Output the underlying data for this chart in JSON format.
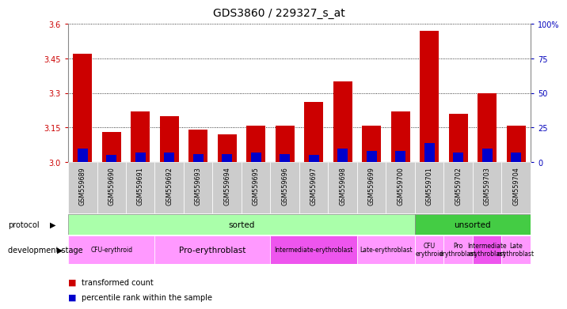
{
  "title": "GDS3860 / 229327_s_at",
  "samples": [
    "GSM559689",
    "GSM559690",
    "GSM559691",
    "GSM559692",
    "GSM559693",
    "GSM559694",
    "GSM559695",
    "GSM559696",
    "GSM559697",
    "GSM559698",
    "GSM559699",
    "GSM559700",
    "GSM559701",
    "GSM559702",
    "GSM559703",
    "GSM559704"
  ],
  "red_values": [
    3.47,
    3.13,
    3.22,
    3.2,
    3.14,
    3.12,
    3.16,
    3.16,
    3.26,
    3.35,
    3.16,
    3.22,
    3.57,
    3.21,
    3.3,
    3.16
  ],
  "blue_pct": [
    10,
    5,
    7,
    7,
    6,
    6,
    7,
    6,
    5,
    10,
    8,
    8,
    14,
    7,
    10,
    7
  ],
  "ymin": 3.0,
  "ymax": 3.6,
  "y_left_ticks": [
    3.0,
    3.15,
    3.3,
    3.45,
    3.6
  ],
  "y_right_ticks": [
    0,
    25,
    50,
    75,
    100
  ],
  "y_right_labels": [
    "0",
    "25",
    "50",
    "75",
    "100%"
  ],
  "bar_width": 0.65,
  "red_color": "#cc0000",
  "blue_color": "#0000cc",
  "bg_color": "#ffffff",
  "plot_bg": "#ffffff",
  "protocol_sorted_label": "sorted",
  "protocol_unsorted_label": "unsorted",
  "protocol_sorted_color": "#aaffaa",
  "protocol_unsorted_color": "#44cc44",
  "dev_stage_groups": [
    {
      "label": "CFU-erythroid",
      "start": 0,
      "end": 3,
      "color": "#ff99ff"
    },
    {
      "label": "Pro-erythroblast",
      "start": 3,
      "end": 7,
      "color": "#ff99ff"
    },
    {
      "label": "Intermediate-erythroblast",
      "start": 7,
      "end": 10,
      "color": "#ee55ee"
    },
    {
      "label": "Late-erythroblast",
      "start": 10,
      "end": 12,
      "color": "#ff99ff"
    },
    {
      "label": "CFU-erythroid",
      "start": 12,
      "end": 13,
      "color": "#ff99ff"
    },
    {
      "label": "Pro-erythroblast",
      "start": 13,
      "end": 14,
      "color": "#ff99ff"
    },
    {
      "label": "Intermediate-erythroblast",
      "start": 14,
      "end": 15,
      "color": "#ee55ee"
    },
    {
      "label": "Late-erythroblast",
      "start": 15,
      "end": 16,
      "color": "#ff99ff"
    }
  ],
  "legend_items": [
    {
      "label": "transformed count",
      "color": "#cc0000"
    },
    {
      "label": "percentile rank within the sample",
      "color": "#0000cc"
    }
  ],
  "ylabel_left_color": "#cc0000",
  "ylabel_right_color": "#0000bb",
  "title_fontsize": 10,
  "tick_fontsize": 7,
  "annotation_fontsize": 7.5,
  "label_fontsize": 7.5,
  "xtick_bg": "#cccccc",
  "xtick_border": "#999999"
}
